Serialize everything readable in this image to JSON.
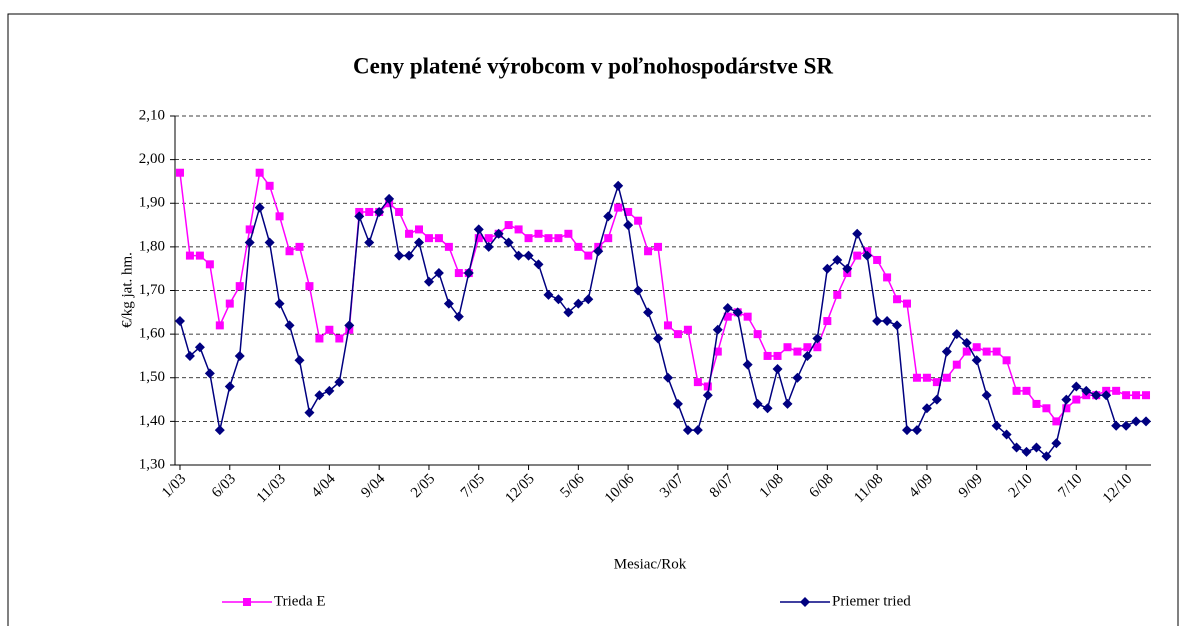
{
  "chart_data": {
    "type": "line",
    "title": "Ceny platené výrobcom v poľnohospodárstve SR",
    "x_label": "Mesiac/Rok",
    "y_label": "€/kg jat. hm.",
    "categories": [
      "1/03",
      null,
      null,
      null,
      null,
      "6/03",
      null,
      null,
      null,
      null,
      "11/03",
      null,
      null,
      null,
      null,
      "4/04",
      null,
      null,
      null,
      null,
      "9/04",
      null,
      null,
      null,
      null,
      "2/05",
      null,
      null,
      null,
      null,
      "7/05",
      null,
      null,
      null,
      null,
      "12/05",
      null,
      null,
      null,
      null,
      "5/06",
      null,
      null,
      null,
      null,
      "10/06",
      null,
      null,
      null,
      null,
      "3/07",
      null,
      null,
      null,
      null,
      "8/07",
      null,
      null,
      null,
      null,
      "1/08",
      null,
      null,
      null,
      null,
      "6/08",
      null,
      null,
      null,
      null,
      "11/08",
      null,
      null,
      null,
      null,
      "4/09",
      null,
      null,
      null,
      null,
      "9/09",
      null,
      null,
      null,
      null,
      "2/10",
      null,
      null,
      null,
      null,
      "7/10",
      null,
      null,
      null,
      null,
      "12/10",
      null,
      null
    ],
    "series": [
      {
        "name": "Trieda E",
        "color": "#ff00ff",
        "marker": "square",
        "values": [
          1.97,
          1.78,
          1.78,
          1.76,
          1.62,
          1.67,
          1.71,
          1.84,
          1.97,
          1.94,
          1.87,
          1.79,
          1.8,
          1.71,
          1.59,
          1.61,
          1.59,
          1.61,
          1.88,
          1.88,
          1.88,
          1.9,
          1.88,
          1.83,
          1.84,
          1.82,
          1.82,
          1.8,
          1.74,
          1.74,
          1.82,
          1.82,
          1.83,
          1.85,
          1.84,
          1.82,
          1.83,
          1.82,
          1.82,
          1.83,
          1.8,
          1.78,
          1.8,
          1.82,
          1.89,
          1.88,
          1.86,
          1.79,
          1.8,
          1.62,
          1.6,
          1.61,
          1.49,
          1.48,
          1.56,
          1.64,
          1.65,
          1.64,
          1.6,
          1.55,
          1.55,
          1.57,
          1.56,
          1.57,
          1.57,
          1.63,
          1.69,
          1.74,
          1.78,
          1.79,
          1.77,
          1.73,
          1.68,
          1.67,
          1.5,
          1.5,
          1.49,
          1.5,
          1.53,
          1.56,
          1.57,
          1.56,
          1.56,
          1.54,
          1.47,
          1.47,
          1.44,
          1.43,
          1.4,
          1.43,
          1.45,
          1.46,
          1.46,
          1.47,
          1.47,
          1.46,
          1.46,
          1.46
        ]
      },
      {
        "name": "Priemer tried",
        "color": "#000080",
        "marker": "diamond",
        "values": [
          1.63,
          1.55,
          1.57,
          1.51,
          1.38,
          1.48,
          1.55,
          1.81,
          1.89,
          1.81,
          1.67,
          1.62,
          1.54,
          1.42,
          1.46,
          1.47,
          1.49,
          1.62,
          1.87,
          1.81,
          1.88,
          1.91,
          1.78,
          1.78,
          1.81,
          1.72,
          1.74,
          1.67,
          1.64,
          1.74,
          1.84,
          1.8,
          1.83,
          1.81,
          1.78,
          1.78,
          1.76,
          1.69,
          1.68,
          1.65,
          1.67,
          1.68,
          1.79,
          1.87,
          1.94,
          1.85,
          1.7,
          1.65,
          1.59,
          1.5,
          1.44,
          1.38,
          1.38,
          1.46,
          1.61,
          1.66,
          1.65,
          1.53,
          1.44,
          1.43,
          1.52,
          1.44,
          1.5,
          1.55,
          1.59,
          1.75,
          1.77,
          1.75,
          1.83,
          1.78,
          1.63,
          1.63,
          1.62,
          1.38,
          1.38,
          1.43,
          1.45,
          1.56,
          1.6,
          1.58,
          1.54,
          1.46,
          1.39,
          1.37,
          1.34,
          1.33,
          1.34,
          1.32,
          1.35,
          1.45,
          1.48,
          1.47,
          1.46,
          1.46,
          1.39,
          1.39,
          1.4,
          1.4
        ]
      }
    ],
    "ylim": [
      1.3,
      2.1
    ],
    "yticks": [
      {
        "value": 1.3,
        "label": "1,30"
      },
      {
        "value": 1.4,
        "label": "1,40"
      },
      {
        "value": 1.5,
        "label": "1,50"
      },
      {
        "value": 1.6,
        "label": "1,60"
      },
      {
        "value": 1.7,
        "label": "1,70"
      },
      {
        "value": 1.8,
        "label": "1,80"
      },
      {
        "value": 1.9,
        "label": "1,90"
      },
      {
        "value": 2.0,
        "label": "2,00"
      },
      {
        "value": 2.1,
        "label": "2,10"
      }
    ],
    "grid": true,
    "legend_position": "bottom"
  }
}
